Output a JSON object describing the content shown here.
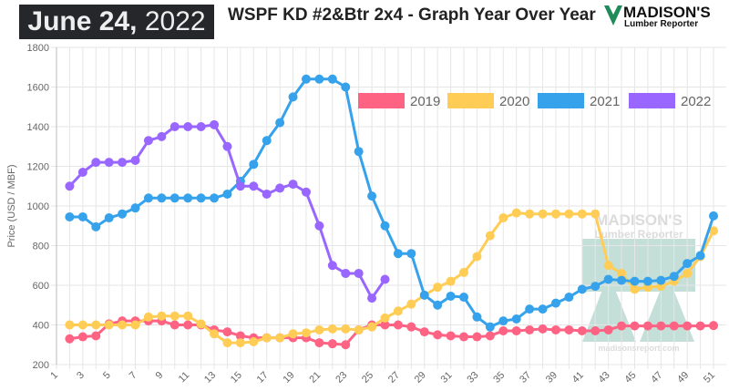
{
  "header": {
    "date_bold": "June 24,",
    "date_year": "2022",
    "title": "WSPF KD #2&Btr 2x4 - Graph Year Over Year"
  },
  "logo": {
    "line1": "MADISON'S",
    "line2": "Lumber Reporter",
    "website": "madisonsreport.com"
  },
  "chart_data": {
    "type": "line",
    "title": "WSPF KD #2&Btr 2x4 - Graph Year Over Year",
    "xlabel": "",
    "ylabel": "Price (USD / MBF)",
    "xlim": [
      1,
      51
    ],
    "ylim": [
      200,
      1800
    ],
    "xticks": [
      1,
      3,
      5,
      7,
      9,
      11,
      13,
      15,
      17,
      19,
      21,
      23,
      25,
      27,
      29,
      31,
      33,
      35,
      37,
      39,
      41,
      43,
      45,
      47,
      49,
      51
    ],
    "yticks": [
      200,
      400,
      600,
      800,
      1000,
      1200,
      1400,
      1600,
      1800
    ],
    "grid": true,
    "legend_position": "top-right",
    "series": [
      {
        "name": "2019",
        "color": "#ff6384",
        "start_week": 2,
        "values": [
          330,
          340,
          345,
          405,
          420,
          420,
          420,
          420,
          400,
          400,
          400,
          375,
          365,
          345,
          335,
          335,
          335,
          335,
          335,
          310,
          305,
          300,
          375,
          400,
          400,
          400,
          390,
          365,
          350,
          345,
          340,
          340,
          345,
          370,
          370,
          375,
          380,
          375,
          375,
          370,
          370,
          375,
          395,
          395,
          395,
          395,
          395,
          395,
          395,
          397
        ]
      },
      {
        "name": "2020",
        "color": "#ffcd56",
        "start_week": 2,
        "values": [
          400,
          400,
          400,
          400,
          400,
          400,
          440,
          445,
          445,
          445,
          405,
          355,
          310,
          310,
          315,
          335,
          335,
          355,
          360,
          375,
          380,
          380,
          375,
          390,
          435,
          470,
          505,
          550,
          590,
          620,
          665,
          745,
          850,
          940,
          965,
          960,
          960,
          960,
          960,
          960,
          960,
          700,
          660,
          580,
          590,
          595,
          620,
          660,
          745,
          875
        ]
      },
      {
        "name": "2021",
        "color": "#36a2eb",
        "start_week": 2,
        "values": [
          945,
          945,
          895,
          940,
          960,
          990,
          1040,
          1040,
          1040,
          1040,
          1040,
          1040,
          1060,
          1125,
          1210,
          1330,
          1420,
          1550,
          1640,
          1640,
          1640,
          1600,
          1275,
          1050,
          900,
          760,
          760,
          550,
          500,
          545,
          540,
          440,
          390,
          420,
          430,
          480,
          480,
          510,
          540,
          580,
          595,
          630,
          625,
          620,
          620,
          625,
          645,
          710,
          750,
          950
        ]
      },
      {
        "name": "2022",
        "color": "#9966ff",
        "start_week": 2,
        "values": [
          1100,
          1170,
          1220,
          1220,
          1220,
          1230,
          1330,
          1350,
          1400,
          1400,
          1400,
          1410,
          1300,
          1100,
          1100,
          1060,
          1090,
          1110,
          1070,
          900,
          700,
          660,
          660,
          535,
          630
        ]
      }
    ]
  }
}
